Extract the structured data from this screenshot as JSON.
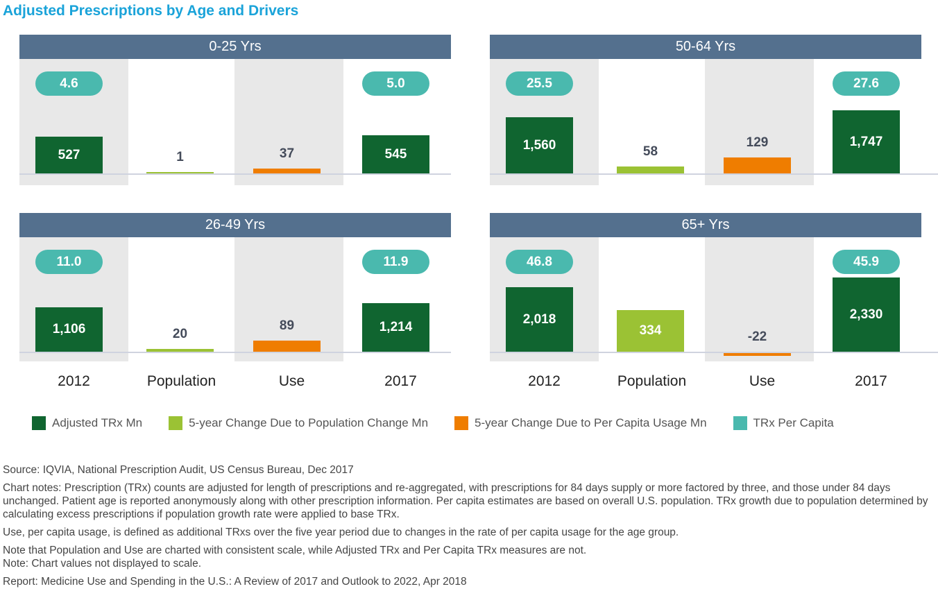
{
  "title": "Adjusted Prescriptions by Age and Drivers",
  "colors": {
    "adjusted": "#106530",
    "population": "#9bc234",
    "use": "#ef7d00",
    "per_capita": "#4ab9ae",
    "header": "#54708e"
  },
  "chart_data": {
    "type": "bar",
    "categories": [
      "2012",
      "Population",
      "Use",
      "2017"
    ],
    "panels": [
      {
        "title": "0-25 Yrs",
        "values": [
          527,
          1,
          37,
          545
        ],
        "per_capita": [
          4.6,
          5.0
        ],
        "labels": [
          "527",
          "1",
          "37",
          "545"
        ],
        "pc_labels": [
          "4.6",
          "5.0"
        ]
      },
      {
        "title": "50-64 Yrs",
        "values": [
          1560,
          58,
          129,
          1747
        ],
        "per_capita": [
          25.5,
          27.6
        ],
        "labels": [
          "1,560",
          "58",
          "129",
          "1,747"
        ],
        "pc_labels": [
          "25.5",
          "27.6"
        ]
      },
      {
        "title": "26-49 Yrs",
        "values": [
          1106,
          20,
          89,
          1214
        ],
        "per_capita": [
          11.0,
          11.9
        ],
        "labels": [
          "1,106",
          "20",
          "89",
          "1,214"
        ],
        "pc_labels": [
          "11.0",
          "11.9"
        ]
      },
      {
        "title": "65+ Yrs",
        "values": [
          2018,
          334,
          -22,
          2330
        ],
        "per_capita": [
          46.8,
          45.9
        ],
        "labels": [
          "2,018",
          "334",
          "-22",
          "2,330"
        ],
        "pc_labels": [
          "46.8",
          "45.9"
        ]
      }
    ],
    "legend": [
      "Adjusted TRx Mn",
      "5-year Change Due to Population Change Mn",
      "5-year Change Due to Per Capita Usage Mn",
      "TRx Per Capita"
    ],
    "legend_position": "bottom"
  },
  "notes": [
    "Source: IQVIA, National Prescription Audit, US Census Bureau, Dec 2017",
    "Chart notes: Prescription (TRx) counts are adjusted for length of prescriptions and re-aggregated, with prescriptions for 84 days supply or more factored by three, and those under 84 days unchanged. Patient age is reported anonymously along with other prescription information. Per capita estimates are based on overall U.S. population. TRx growth due to population determined by calculating excess prescriptions if population growth rate were applied to base TRx.",
    "Use, per capita usage, is defined as additional TRxs over the five year period due to changes in the rate of per capita usage for the age group.",
    "Note that Population and Use are charted with consistent scale, while Adjusted TRx and Per Capita TRx measures are not.<br>Note: Chart values not displayed to scale.",
    "Report: Medicine Use and Spending in the U.S.: A Review of 2017 and Outlook to 2022, Apr 2018"
  ]
}
